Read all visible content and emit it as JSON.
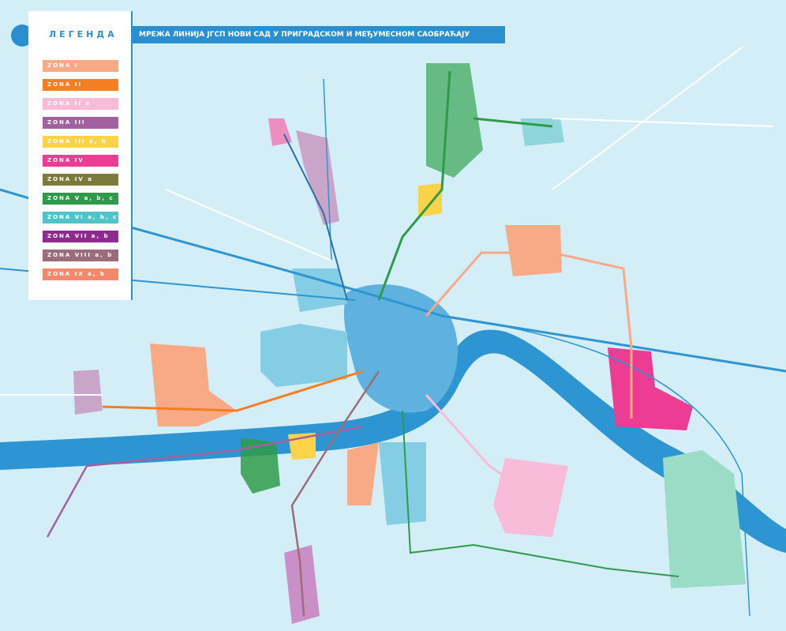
{
  "legend": {
    "title": "ЛЕГЕНДА",
    "items": [
      {
        "label": "ZONA I",
        "color": "#f7aa85"
      },
      {
        "label": "ZONA II",
        "color": "#f47e22"
      },
      {
        "label": "ZONA II a",
        "color": "#f8bcd8"
      },
      {
        "label": "ZONA III",
        "color": "#a2629f"
      },
      {
        "label": "ZONA III a, b",
        "color": "#fbd348"
      },
      {
        "label": "ZONA IV",
        "color": "#ec3c94"
      },
      {
        "label": "ZONA IV a",
        "color": "#7b7c3b"
      },
      {
        "label": "ZONA V a, b, c",
        "color": "#2f9b4a"
      },
      {
        "label": "ZONA VI a, b, c",
        "color": "#4fc4c9"
      },
      {
        "label": "ZONA VII a, b",
        "color": "#8f2b90"
      },
      {
        "label": "ZONA VIII a, b",
        "color": "#9b6c79"
      },
      {
        "label": "ZONA IX a, b",
        "color": "#f5886b"
      }
    ]
  },
  "header": {
    "title": "МРЕЖА ЛИНИЈА ЈГСП НОВИ САД У ПРИГРАДСКОМ И МЕЂУМЕСНОМ САОБРАЋАЈУ"
  }
}
